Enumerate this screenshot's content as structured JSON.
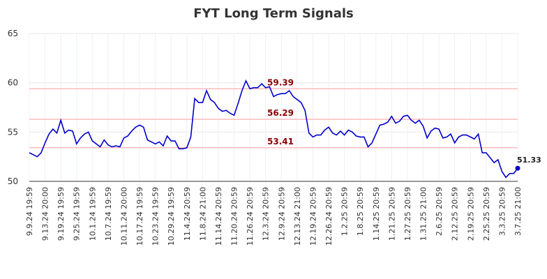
{
  "chart_data": {
    "type": "line",
    "title": "FYT Long Term Signals",
    "categories": [
      "9.9.24 19:59",
      null,
      null,
      null,
      "9.13.24 20:00",
      null,
      null,
      null,
      "9.19.24 19:59",
      null,
      null,
      null,
      "9.25.24 19:59",
      null,
      null,
      null,
      "10.1.24 19:59",
      null,
      null,
      null,
      "10.7.24 19:59",
      null,
      null,
      null,
      "10.11.24 20:00",
      null,
      null,
      null,
      "10.17.24 19:59",
      null,
      null,
      null,
      "10.23.24 19:59",
      null,
      null,
      null,
      "10.29.24 19:59",
      null,
      null,
      null,
      "11.4.24 20:59",
      null,
      null,
      null,
      "11.8.24 21:00",
      null,
      null,
      null,
      "11.14.24 20:59",
      null,
      null,
      null,
      "11.20.24 20:59",
      null,
      null,
      null,
      "11.26.24 20:59",
      null,
      null,
      null,
      "12.3.24 20:59",
      null,
      null,
      null,
      "12.9.24 20:59",
      null,
      null,
      null,
      "12.13.24 21:00",
      null,
      null,
      null,
      "12.19.24 20:59",
      null,
      null,
      null,
      "12.26.24 20:59",
      null,
      null,
      null,
      "1.2.25 20:59",
      null,
      null,
      null,
      "1.8.25 20:59",
      null,
      null,
      null,
      "1.14.25 20:59",
      null,
      null,
      null,
      "1.21.25 20:59",
      null,
      null,
      null,
      "1.27.25 20:59",
      null,
      null,
      null,
      "1.31.25 21:00",
      null,
      null,
      null,
      "2.6.25 20:59",
      null,
      null,
      null,
      "2.12.25 20:59",
      null,
      null,
      null,
      "2.19.25 20:59",
      null,
      null,
      null,
      "2.25.25 20:59",
      null,
      null,
      null,
      "3.3.25 20:59",
      null,
      null,
      null,
      "3.7.25 21:00"
    ],
    "series": [
      {
        "color": "#0000cc",
        "values": [
          52.9,
          52.7,
          52.5,
          52.9,
          53.9,
          54.8,
          55.3,
          54.9,
          56.2,
          54.9,
          55.2,
          55.1,
          53.8,
          54.4,
          54.8,
          55.0,
          54.1,
          53.8,
          53.5,
          54.2,
          53.7,
          53.5,
          53.6,
          53.5,
          54.4,
          54.6,
          55.1,
          55.5,
          55.7,
          55.5,
          54.2,
          54.0,
          53.8,
          54.0,
          53.6,
          54.6,
          54.1,
          54.1,
          53.3,
          53.3,
          53.4,
          54.5,
          58.4,
          58.0,
          58.0,
          59.2,
          58.3,
          58.0,
          57.4,
          57.1,
          57.2,
          56.9,
          56.7,
          57.9,
          59.2,
          60.2,
          59.4,
          59.5,
          59.5,
          59.9,
          59.5,
          59.6,
          58.6,
          58.8,
          58.9,
          58.9,
          59.2,
          58.6,
          58.3,
          58.0,
          57.2,
          54.9,
          54.5,
          54.7,
          54.7,
          55.2,
          55.5,
          54.9,
          54.7,
          55.1,
          54.7,
          55.2,
          55.0,
          54.6,
          54.5,
          54.5,
          53.5,
          53.9,
          54.8,
          55.7,
          55.8,
          56.0,
          56.6,
          55.9,
          56.1,
          56.6,
          56.7,
          56.2,
          55.9,
          56.2,
          55.6,
          54.4,
          55.1,
          55.4,
          55.3,
          54.4,
          54.5,
          54.8,
          53.9,
          54.5,
          54.7,
          54.7,
          54.5,
          54.3,
          54.8,
          52.9,
          52.9,
          52.4,
          51.9,
          52.2,
          51.0,
          50.4,
          50.8,
          50.8,
          51.33
        ]
      }
    ],
    "hlines": [
      {
        "value": 59.39,
        "color": "#ffbbbb",
        "label_color": "#8b0000"
      },
      {
        "value": 56.29,
        "color": "#ffbbbb",
        "label_color": "#8b0000"
      },
      {
        "value": 53.41,
        "color": "#ffbbbb",
        "label_color": "#8b0000"
      }
    ],
    "ylim": [
      50,
      65
    ],
    "yticks": [
      50,
      55,
      60,
      65
    ],
    "grid": true
  }
}
